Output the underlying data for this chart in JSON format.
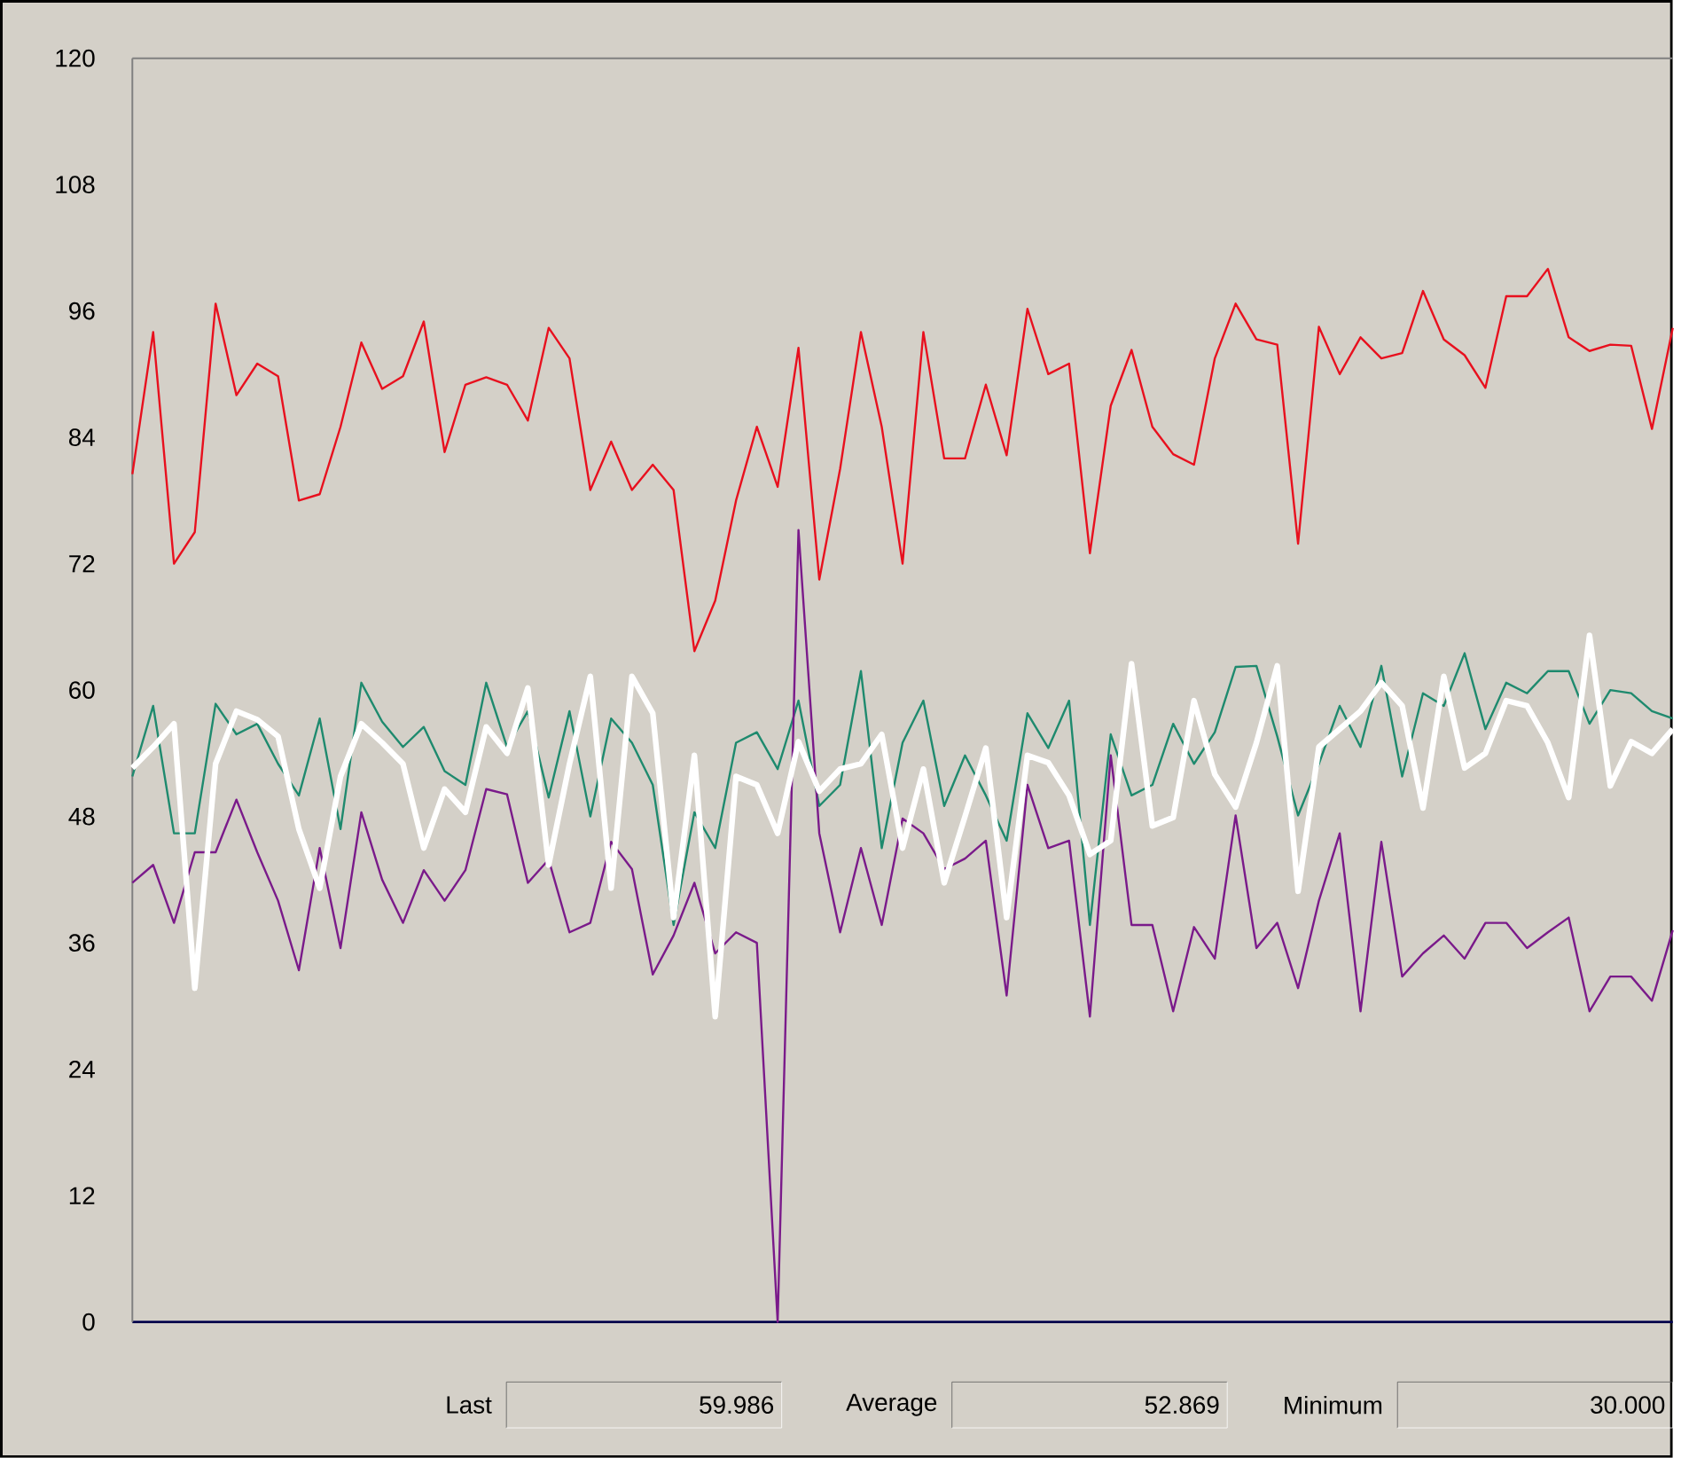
{
  "chart_data": {
    "type": "line",
    "ylim": [
      0,
      120
    ],
    "yticks": [
      0,
      12,
      24,
      36,
      48,
      60,
      72,
      84,
      96,
      108,
      120
    ],
    "tick_labels": "y",
    "categories": [
      null,
      null,
      null,
      null,
      null,
      null,
      null,
      null,
      null,
      null,
      null,
      null,
      null,
      null,
      null,
      null,
      null,
      null,
      null,
      null,
      null,
      null,
      null,
      null,
      null,
      null,
      null,
      null,
      null,
      null,
      null,
      null,
      null,
      null,
      null,
      null,
      null,
      null,
      null,
      null,
      null,
      null,
      null,
      null,
      null,
      null,
      null,
      null,
      null,
      null,
      null,
      null,
      null,
      null,
      null,
      null,
      null,
      null,
      null,
      null,
      null,
      null,
      null,
      null,
      null,
      null,
      null,
      null,
      null,
      null,
      null,
      null,
      null,
      null,
      null
    ],
    "series": [
      {
        "color": "#e8101e",
        "values": [
          80.5,
          94,
          72,
          75,
          96.7,
          88,
          91,
          89.8,
          78,
          78.6,
          85,
          93,
          88.6,
          89.8,
          95,
          82.6,
          89,
          89.7,
          89,
          85.6,
          94.4,
          91.5,
          79,
          83.6,
          79,
          81.4,
          79,
          63.7,
          68.5,
          78,
          85,
          79.3,
          92.5,
          70.5,
          81,
          94,
          85,
          72,
          94,
          82,
          82,
          89,
          82.3,
          96.2,
          90,
          91,
          73,
          87,
          92.3,
          85,
          82.4,
          81.4,
          91.5,
          96.7,
          93.3,
          92.8,
          73.9,
          94.5,
          90,
          93.5,
          91.5,
          92,
          97.9,
          93.3,
          91.8,
          88.7,
          97.4,
          97.4,
          100,
          93.5,
          92.2,
          92.8,
          92.7,
          84.8,
          94.4
        ]
      },
      {
        "color": "#1e8a6e",
        "values": [
          51.8,
          58.5,
          46.4,
          46.4,
          58.7,
          55.8,
          56.8,
          53,
          50,
          57.3,
          46.8,
          60.7,
          57,
          54.6,
          56.5,
          52.3,
          51,
          60.7,
          54.6,
          58,
          49.8,
          58,
          48,
          57.3,
          55,
          51,
          37.7,
          48.4,
          45,
          55,
          56,
          52.5,
          59,
          49,
          51,
          61.8,
          45,
          55,
          59,
          49,
          53.8,
          50,
          45.7,
          57.8,
          54.5,
          59,
          37.7,
          55.8,
          50,
          51,
          56.8,
          53,
          56,
          62.2,
          62.3,
          55.6,
          48.1,
          53,
          58.5,
          54.6,
          62.3,
          51.8,
          59.7,
          58.5,
          63.5,
          56.3,
          60.7,
          59.7,
          61.8,
          61.8,
          56.8,
          60,
          59.7,
          58,
          57.3
        ]
      },
      {
        "color": "#7a1a8a",
        "values": [
          41.7,
          43.4,
          37.9,
          44.6,
          44.6,
          49.6,
          44.6,
          40,
          33.4,
          45,
          35.5,
          48.4,
          42,
          37.9,
          42.9,
          40,
          42.9,
          50.6,
          50.1,
          41.7,
          43.9,
          37,
          37.9,
          45.6,
          43,
          33,
          36.7,
          41.7,
          35,
          37,
          36,
          0,
          75.2,
          46.4,
          37,
          45,
          37.7,
          47.8,
          46.4,
          43,
          44,
          45.7,
          31,
          51,
          45,
          45.7,
          29,
          53.8,
          37.7,
          37.7,
          29.5,
          37.5,
          34.5,
          48.1,
          35.5,
          37.9,
          31.7,
          40,
          46.4,
          29.5,
          45.6,
          32.8,
          35,
          36.7,
          34.5,
          37.9,
          37.9,
          35.5,
          37,
          38.4,
          29.5,
          32.8,
          32.8,
          30.5,
          37.2
        ]
      },
      {
        "color": "#ffffff",
        "values": [
          52.6,
          54.6,
          56.8,
          31.7,
          53,
          58,
          57.2,
          55.6,
          46.8,
          41.2,
          51.8,
          56.8,
          55,
          53,
          45,
          50.6,
          48.4,
          56.5,
          54,
          60.2,
          43.4,
          53,
          61.3,
          41.2,
          61.3,
          57.8,
          38.4,
          53.8,
          29,
          51.8,
          51,
          46.4,
          55.1,
          50.4,
          52.5,
          53,
          55.8,
          45,
          52.5,
          41.7,
          48,
          54.5,
          38.4,
          53.8,
          53.1,
          50,
          44.4,
          45.7,
          62.5,
          47.1,
          47.9,
          59,
          52,
          48.9,
          55,
          62.3,
          40.9,
          54.6,
          56.3,
          58,
          60.7,
          58.5,
          48.8,
          61.3,
          52.6,
          54,
          59,
          58.5,
          55,
          49.8,
          65.2,
          50.9,
          55.1,
          54,
          56.3
        ]
      }
    ],
    "annotations": [
      "Last",
      "59.986",
      "Average",
      "52.869",
      "Minimum",
      "30.000"
    ]
  }
}
